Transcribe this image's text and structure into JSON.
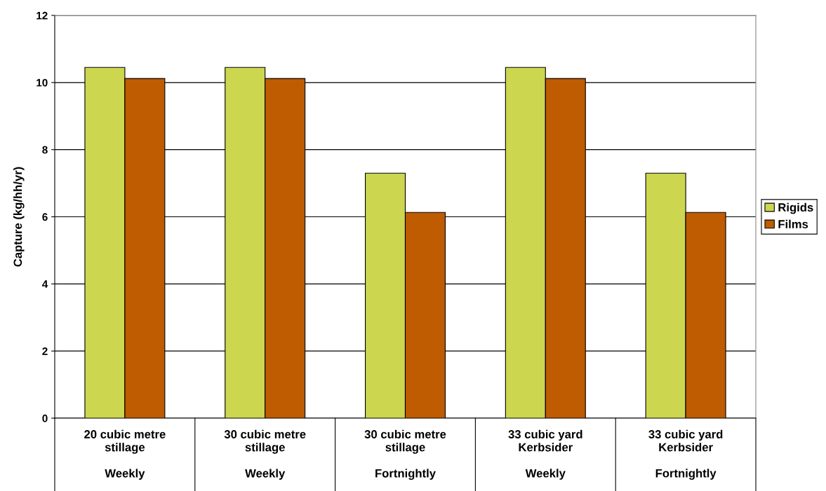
{
  "chart_data": {
    "type": "bar",
    "ylabel": "Capture (kg/hh/yr)",
    "categories": [
      "20 cubic metre\nstillage\n\nWeekly",
      "30 cubic metre\nstillage\n\nWeekly",
      "30 cubic metre\nstillage\n\nFortnightly",
      "33 cubic yard\nKerbsider\n\nWeekly",
      "33 cubic yard\nKerbsider\n\nFortnightly"
    ],
    "series": [
      {
        "name": "Rigids",
        "color": "#ccd64f",
        "values": [
          10.45,
          10.45,
          7.3,
          10.45,
          7.3
        ]
      },
      {
        "name": "Films",
        "color": "#bf5b00",
        "values": [
          10.12,
          10.12,
          6.13,
          10.12,
          6.13
        ]
      }
    ],
    "ylim": [
      0,
      12
    ],
    "yticks": [
      0,
      2,
      4,
      6,
      8,
      10,
      12
    ],
    "grid": "y",
    "legend": "right"
  }
}
